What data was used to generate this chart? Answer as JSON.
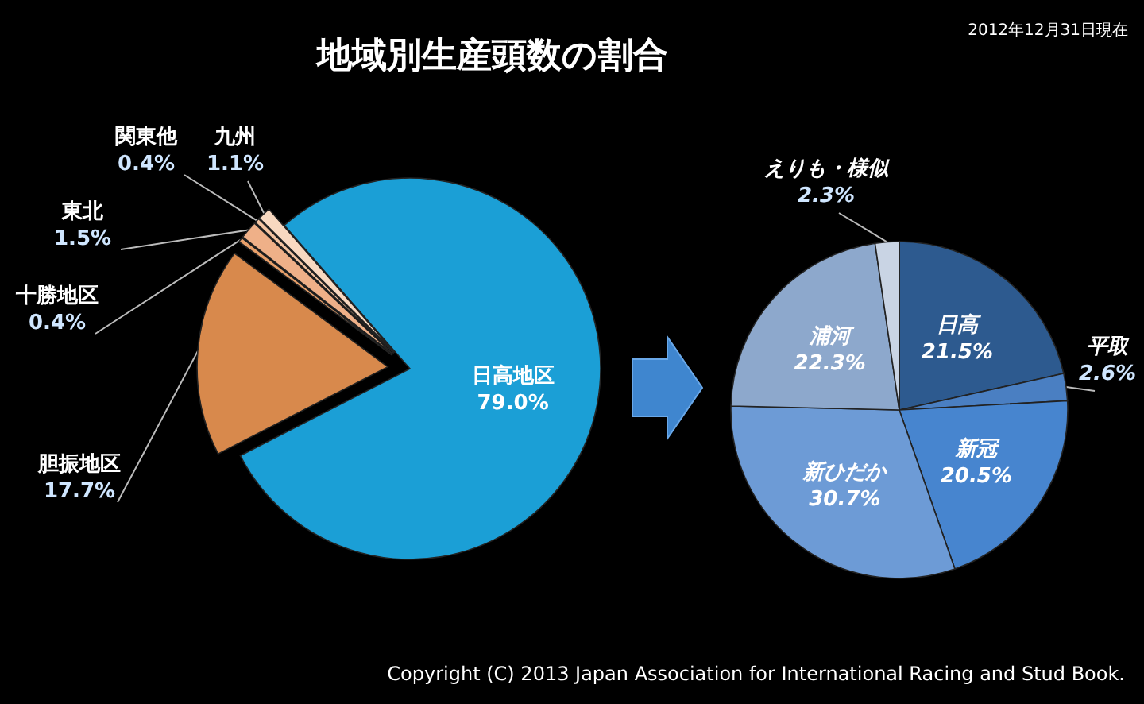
{
  "chart_data": [
    {
      "type": "pie",
      "title": "地域別生産頭数の割合",
      "annotations": [
        "2012年12月31日現在",
        "Copyright (C) 2013 Japan Association for International Racing and Stud Book."
      ],
      "categories": [
        "日高地区",
        "胆振地区",
        "十勝地区",
        "東北",
        "関東他",
        "九州"
      ],
      "values": [
        79.0,
        17.7,
        0.4,
        1.5,
        0.4,
        1.1
      ],
      "value_labels": [
        "79.0%",
        "17.7%",
        "0.4%",
        "1.5%",
        "0.4%",
        "1.1%"
      ],
      "colors": [
        "#1b9fd6",
        "#d8894c",
        "#e9a06a",
        "#efb088",
        "#f3c4a2",
        "#f8d8c0"
      ]
    },
    {
      "type": "pie",
      "categories": [
        "日高",
        "平取",
        "新冠",
        "新ひだか",
        "浦河",
        "えりも・様似"
      ],
      "values": [
        21.5,
        2.6,
        20.5,
        30.7,
        22.3,
        2.3
      ],
      "value_labels": [
        "21.5%",
        "2.6%",
        "20.5%",
        "30.7%",
        "22.3%",
        "2.3%"
      ],
      "colors": [
        "#2d5a8f",
        "#4a7fc2",
        "#4785cf",
        "#6d9bd6",
        "#8da8cc",
        "#c9d4e4"
      ]
    }
  ]
}
